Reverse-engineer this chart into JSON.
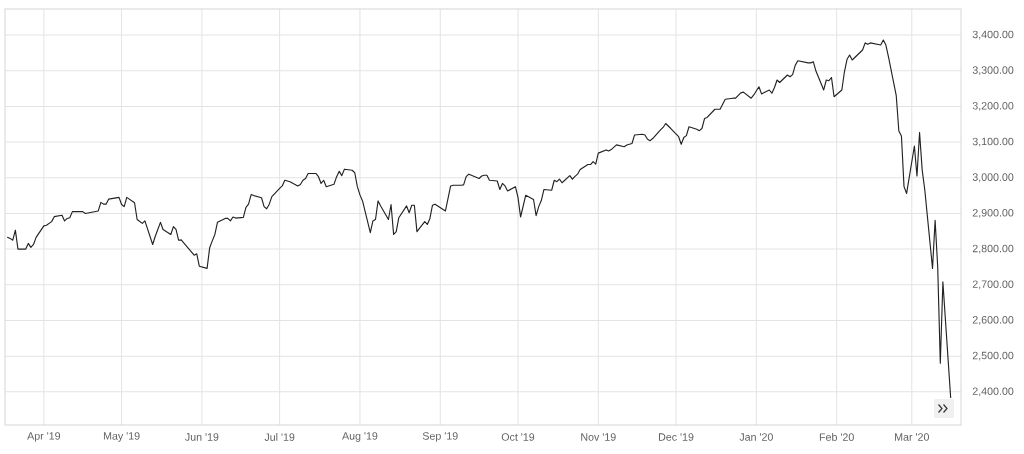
{
  "chart_data": {
    "type": "line",
    "color": "#222222",
    "line_style": "solid",
    "grid": true,
    "xlim": [
      "2019-03-17",
      "2020-03-20"
    ],
    "ylim": [
      2307,
      3473
    ],
    "xticks": [
      {
        "value": "2019-04-01",
        "label": "Apr '19"
      },
      {
        "value": "2019-05-01",
        "label": "May '19"
      },
      {
        "value": "2019-06-01",
        "label": "Jun '19"
      },
      {
        "value": "2019-07-01",
        "label": "Jul '19"
      },
      {
        "value": "2019-08-01",
        "label": "Aug '19"
      },
      {
        "value": "2019-09-01",
        "label": "Sep '19"
      },
      {
        "value": "2019-10-01",
        "label": "Oct '19"
      },
      {
        "value": "2019-11-01",
        "label": "Nov '19"
      },
      {
        "value": "2019-12-01",
        "label": "Dec '19"
      },
      {
        "value": "2020-01-01",
        "label": "Jan '20"
      },
      {
        "value": "2020-02-01",
        "label": "Feb '20"
      },
      {
        "value": "2020-03-01",
        "label": "Mar '20"
      }
    ],
    "yticks": [
      {
        "value": 2400,
        "label": "2,400.00"
      },
      {
        "value": 2500,
        "label": "2,500.00"
      },
      {
        "value": 2600,
        "label": "2,600.00"
      },
      {
        "value": 2700,
        "label": "2,700.00"
      },
      {
        "value": 2800,
        "label": "2,800.00"
      },
      {
        "value": 2900,
        "label": "2,900.00"
      },
      {
        "value": 3000,
        "label": "3,000.00"
      },
      {
        "value": 3100,
        "label": "3,100.00"
      },
      {
        "value": 3200,
        "label": "3,200.00"
      },
      {
        "value": 3300,
        "label": "3,300.00"
      },
      {
        "value": 3400,
        "label": "3,400.00"
      }
    ],
    "x": [
      "2019-03-18",
      "2019-03-19",
      "2019-03-20",
      "2019-03-21",
      "2019-03-22",
      "2019-03-25",
      "2019-03-26",
      "2019-03-27",
      "2019-03-28",
      "2019-03-29",
      "2019-04-01",
      "2019-04-02",
      "2019-04-04",
      "2019-04-05",
      "2019-04-08",
      "2019-04-09",
      "2019-04-10",
      "2019-04-11",
      "2019-04-12",
      "2019-04-16",
      "2019-04-17",
      "2019-04-22",
      "2019-04-23",
      "2019-04-24",
      "2019-04-25",
      "2019-04-26",
      "2019-04-30",
      "2019-05-01",
      "2019-05-02",
      "2019-05-03",
      "2019-05-06",
      "2019-05-07",
      "2019-05-09",
      "2019-05-10",
      "2019-05-13",
      "2019-05-14",
      "2019-05-16",
      "2019-05-17",
      "2019-05-20",
      "2019-05-21",
      "2019-05-22",
      "2019-05-23",
      "2019-05-24",
      "2019-05-29",
      "2019-05-30",
      "2019-05-31",
      "2019-06-03",
      "2019-06-04",
      "2019-06-05",
      "2019-06-06",
      "2019-06-07",
      "2019-06-10",
      "2019-06-11",
      "2019-06-12",
      "2019-06-13",
      "2019-06-14",
      "2019-06-17",
      "2019-06-18",
      "2019-06-19",
      "2019-06-20",
      "2019-06-21",
      "2019-06-24",
      "2019-06-25",
      "2019-06-26",
      "2019-06-27",
      "2019-06-28",
      "2019-07-01",
      "2019-07-02",
      "2019-07-03",
      "2019-07-05",
      "2019-07-08",
      "2019-07-09",
      "2019-07-10",
      "2019-07-11",
      "2019-07-12",
      "2019-07-15",
      "2019-07-16",
      "2019-07-17",
      "2019-07-18",
      "2019-07-19",
      "2019-07-22",
      "2019-07-23",
      "2019-07-24",
      "2019-07-25",
      "2019-07-26",
      "2019-07-29",
      "2019-07-30",
      "2019-07-31",
      "2019-08-01",
      "2019-08-02",
      "2019-08-05",
      "2019-08-06",
      "2019-08-07",
      "2019-08-08",
      "2019-08-09",
      "2019-08-12",
      "2019-08-13",
      "2019-08-14",
      "2019-08-15",
      "2019-08-16",
      "2019-08-19",
      "2019-08-20",
      "2019-08-21",
      "2019-08-22",
      "2019-08-23",
      "2019-08-26",
      "2019-08-27",
      "2019-08-28",
      "2019-08-29",
      "2019-08-30",
      "2019-09-03",
      "2019-09-05",
      "2019-09-06",
      "2019-09-09",
      "2019-09-10",
      "2019-09-11",
      "2019-09-12",
      "2019-09-13",
      "2019-09-16",
      "2019-09-17",
      "2019-09-18",
      "2019-09-19",
      "2019-09-20",
      "2019-09-23",
      "2019-09-24",
      "2019-09-25",
      "2019-09-26",
      "2019-09-27",
      "2019-09-30",
      "2019-10-01",
      "2019-10-02",
      "2019-10-04",
      "2019-10-07",
      "2019-10-08",
      "2019-10-09",
      "2019-10-10",
      "2019-10-11",
      "2019-10-14",
      "2019-10-15",
      "2019-10-16",
      "2019-10-17",
      "2019-10-18",
      "2019-10-21",
      "2019-10-22",
      "2019-10-23",
      "2019-10-24",
      "2019-10-25",
      "2019-10-28",
      "2019-10-29",
      "2019-10-30",
      "2019-10-31",
      "2019-11-01",
      "2019-11-04",
      "2019-11-05",
      "2019-11-06",
      "2019-11-08",
      "2019-11-11",
      "2019-11-12",
      "2019-11-13",
      "2019-11-14",
      "2019-11-15",
      "2019-11-18",
      "2019-11-19",
      "2019-11-20",
      "2019-11-21",
      "2019-11-22",
      "2019-11-25",
      "2019-11-26",
      "2019-11-27",
      "2019-11-29",
      "2019-12-02",
      "2019-12-03",
      "2019-12-04",
      "2019-12-05",
      "2019-12-06",
      "2019-12-09",
      "2019-12-10",
      "2019-12-11",
      "2019-12-12",
      "2019-12-13",
      "2019-12-16",
      "2019-12-17",
      "2019-12-18",
      "2019-12-19",
      "2019-12-20",
      "2019-12-23",
      "2019-12-24",
      "2019-12-26",
      "2019-12-27",
      "2019-12-30",
      "2019-12-31",
      "2020-01-02",
      "2020-01-03",
      "2020-01-06",
      "2020-01-07",
      "2020-01-08",
      "2020-01-09",
      "2020-01-10",
      "2020-01-13",
      "2020-01-14",
      "2020-01-15",
      "2020-01-16",
      "2020-01-17",
      "2020-01-21",
      "2020-01-22",
      "2020-01-23",
      "2020-01-24",
      "2020-01-27",
      "2020-01-28",
      "2020-01-29",
      "2020-01-30",
      "2020-01-31",
      "2020-02-03",
      "2020-02-04",
      "2020-02-05",
      "2020-02-06",
      "2020-02-07",
      "2020-02-10",
      "2020-02-11",
      "2020-02-12",
      "2020-02-13",
      "2020-02-14",
      "2020-02-18",
      "2020-02-19",
      "2020-02-20",
      "2020-02-21",
      "2020-02-24",
      "2020-02-25",
      "2020-02-26",
      "2020-02-27",
      "2020-02-28",
      "2020-03-02",
      "2020-03-03",
      "2020-03-04",
      "2020-03-05",
      "2020-03-06",
      "2020-03-09",
      "2020-03-10",
      "2020-03-11",
      "2020-03-12",
      "2020-03-13",
      "2020-03-16"
    ],
    "values": [
      2833,
      2830,
      2825,
      2853,
      2800,
      2800,
      2816,
      2805,
      2813,
      2833,
      2865,
      2867,
      2877,
      2891,
      2895,
      2879,
      2886,
      2888,
      2905,
      2905,
      2900,
      2907,
      2931,
      2926,
      2926,
      2940,
      2945,
      2925,
      2919,
      2945,
      2930,
      2883,
      2872,
      2879,
      2813,
      2836,
      2875,
      2855,
      2841,
      2863,
      2855,
      2825,
      2826,
      2783,
      2787,
      2752,
      2746,
      2804,
      2823,
      2841,
      2875,
      2886,
      2886,
      2879,
      2890,
      2887,
      2889,
      2917,
      2926,
      2953,
      2950,
      2944,
      2919,
      2913,
      2926,
      2947,
      2970,
      2977,
      2993,
      2989,
      2977,
      2981,
      2993,
      2998,
      3012,
      3012,
      3003,
      2984,
      2993,
      2975,
      2982,
      3003,
      3018,
      3006,
      3024,
      3021,
      3014,
      2975,
      2952,
      2935,
      2846,
      2879,
      2883,
      2935,
      2921,
      2883,
      2925,
      2841,
      2849,
      2888,
      2921,
      2902,
      2923,
      2923,
      2849,
      2877,
      2869,
      2886,
      2923,
      2926,
      2907,
      2977,
      2979,
      2979,
      2980,
      3003,
      3010,
      3007,
      2998,
      3005,
      3007,
      3007,
      2993,
      2991,
      2967,
      2984,
      2977,
      2963,
      2975,
      2945,
      2890,
      2951,
      2939,
      2894,
      2919,
      2936,
      2967,
      2965,
      2993,
      2989,
      2996,
      2986,
      3006,
      2996,
      3004,
      3010,
      3023,
      3037,
      3037,
      3045,
      3038,
      3069,
      3078,
      3075,
      3079,
      3092,
      3087,
      3092,
      3094,
      3096,
      3120,
      3122,
      3120,
      3108,
      3104,
      3110,
      3134,
      3141,
      3152,
      3138,
      3115,
      3094,
      3113,
      3118,
      3143,
      3136,
      3132,
      3138,
      3166,
      3169,
      3192,
      3192,
      3192,
      3206,
      3220,
      3223,
      3223,
      3238,
      3240,
      3223,
      3232,
      3255,
      3235,
      3246,
      3237,
      3253,
      3274,
      3267,
      3288,
      3283,
      3289,
      3315,
      3328,
      3322,
      3322,
      3325,
      3299,
      3246,
      3274,
      3272,
      3281,
      3227,
      3246,
      3297,
      3332,
      3344,
      3330,
      3351,
      3358,
      3378,
      3374,
      3378,
      3372,
      3386,
      3372,
      3339,
      3230,
      3131,
      3117,
      2975,
      2956,
      3089,
      3005,
      3127,
      3022,
      2967,
      2746,
      2881,
      2750,
      2480,
      2708,
      2384
    ]
  }
}
